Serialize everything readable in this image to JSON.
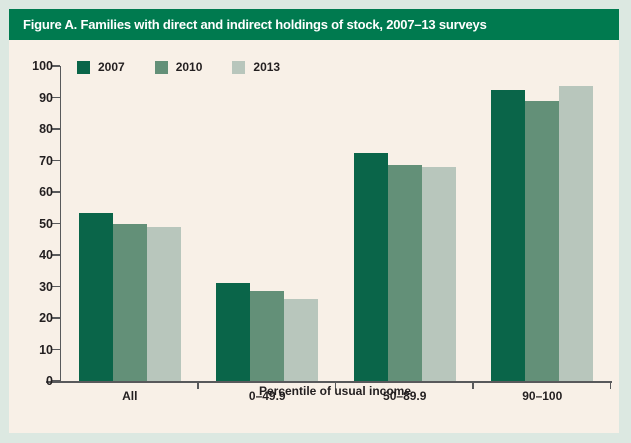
{
  "page": {
    "background": "#dce8e1"
  },
  "figure": {
    "title": "Figure A. Families with direct and indirect holdings of stock, 2007–13 surveys",
    "title_bar_color": "#007a4f",
    "background": "#f8f0e7"
  },
  "chart_data": {
    "type": "bar",
    "title": "Figure A. Families with direct and indirect holdings of stock, 2007–13 surveys",
    "categories": [
      "All",
      "0–49.9",
      "50–89.9",
      "90–100"
    ],
    "series": [
      {
        "name": "2007",
        "color": "#0a6549",
        "values": [
          53.2,
          31.0,
          72.5,
          92.5
        ]
      },
      {
        "name": "2010",
        "color": "#639078",
        "values": [
          49.9,
          28.5,
          68.5,
          89.0
        ]
      },
      {
        "name": "2013",
        "color": "#b8c6bc",
        "values": [
          48.8,
          26.0,
          68.0,
          93.5
        ]
      }
    ],
    "xlabel": "Percentile of usual income",
    "ylabel": "",
    "ylim": [
      0,
      100
    ],
    "yticks": [
      0,
      10,
      20,
      30,
      40,
      50,
      60,
      70,
      80,
      90,
      100
    ],
    "grid": false,
    "legend_position": "top-left",
    "axis_color": "#58595b",
    "text_color": "#231f20"
  }
}
